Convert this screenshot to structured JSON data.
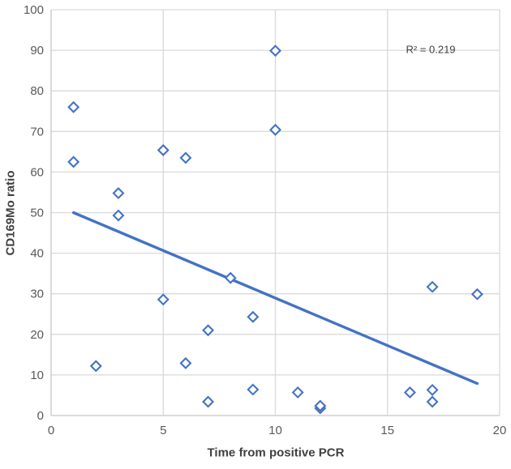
{
  "chart_data": {
    "type": "scatter",
    "title": "",
    "xlabel": "Time from positive PCR",
    "ylabel": "CD169Mo ratio",
    "annotation": "R² = 0.219",
    "xlim": [
      0,
      20
    ],
    "ylim": [
      0,
      100
    ],
    "xticks": [
      0,
      5,
      10,
      15,
      20
    ],
    "yticks": [
      0,
      10,
      20,
      30,
      40,
      50,
      60,
      70,
      80,
      90,
      100
    ],
    "grid": true,
    "legend": false,
    "points": [
      [
        1,
        76.0
      ],
      [
        1,
        62.5
      ],
      [
        2,
        12.2
      ],
      [
        3,
        54.8
      ],
      [
        3,
        49.3
      ],
      [
        5,
        65.4
      ],
      [
        5,
        28.6
      ],
      [
        6,
        63.5
      ],
      [
        6,
        12.9
      ],
      [
        7,
        21.0
      ],
      [
        7,
        3.4
      ],
      [
        8,
        33.9
      ],
      [
        9,
        24.3
      ],
      [
        9,
        6.4
      ],
      [
        10,
        89.9
      ],
      [
        10,
        70.4
      ],
      [
        11,
        5.7
      ],
      [
        12,
        1.8
      ],
      [
        12,
        2.4
      ],
      [
        16,
        5.7
      ],
      [
        17,
        31.7
      ],
      [
        17,
        6.3
      ],
      [
        17,
        3.4
      ],
      [
        19,
        29.9
      ]
    ],
    "trendline": {
      "x1": 1,
      "y1": 50.0,
      "x2": 19,
      "y2": 7.9,
      "r_squared": 0.219
    },
    "colors": {
      "marker": "#4472C4",
      "trendline": "#4472C4",
      "gridline": "#D9D9D9",
      "axis_line": "#C6C6C6",
      "tick_label": "#595959",
      "axis_title": "#404040",
      "annotation": "#404040",
      "background": "#FFFFFF"
    }
  }
}
